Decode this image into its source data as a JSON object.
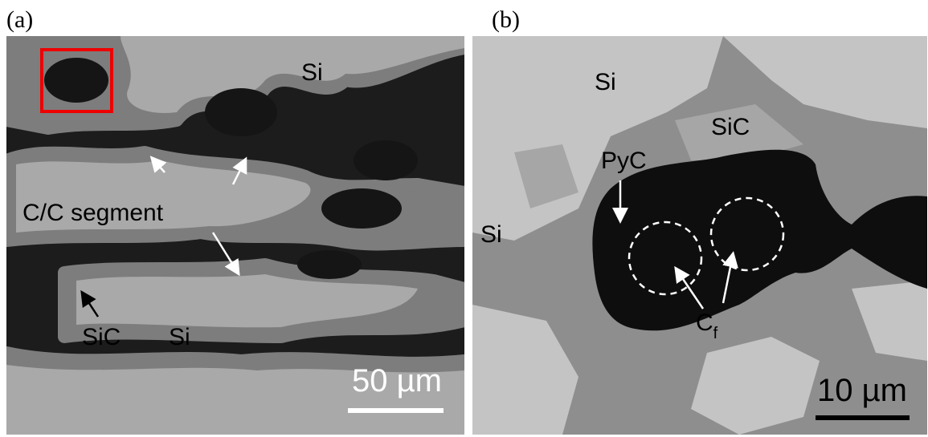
{
  "panels": [
    {
      "label": "(a)",
      "annotations": [
        "Si",
        "C/C segment",
        "SiC",
        "Si"
      ],
      "scale_bar": "50 µm"
    },
    {
      "label": "(b)",
      "annotations": [
        "Si",
        "SiC",
        "PyC",
        "Si"
      ],
      "fiber_label": {
        "main": "C",
        "subscript": "f"
      },
      "scale_bar": "10 µm"
    }
  ]
}
